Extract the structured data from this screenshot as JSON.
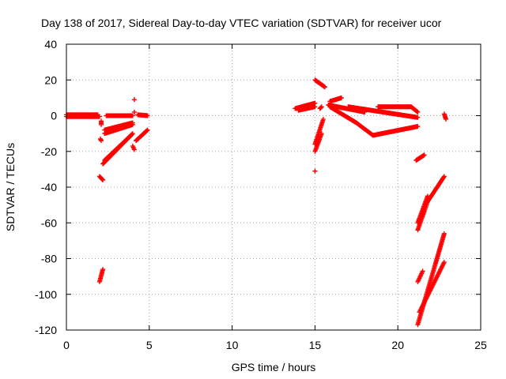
{
  "chart_data": {
    "type": "scatter",
    "title": "Day 138 of 2017, Sidereal Day-to-day VTEC variation (SDTVAR) for receiver ucor",
    "xlabel": "GPS time / hours",
    "ylabel": "SDTVAR / TECUs",
    "xlim": [
      0,
      25
    ],
    "ylim": [
      -120,
      40
    ],
    "xticks": [
      0,
      5,
      10,
      15,
      20,
      25
    ],
    "yticks": [
      -120,
      -100,
      -80,
      -60,
      -40,
      -20,
      0,
      20,
      40
    ],
    "grid": true,
    "marker": "+",
    "color": "#ff0000",
    "segments": [
      {
        "x0": 0.0,
        "y0": -0.5,
        "x1": 2.0,
        "y1": -0.5
      },
      {
        "x0": 0.0,
        "y0": 0.5,
        "x1": 1.9,
        "y1": 0.5
      },
      {
        "x0": 2.1,
        "y0": -3.0,
        "x1": 2.1,
        "y1": -5.0
      },
      {
        "x0": 2.05,
        "y0": -13.0,
        "x1": 2.1,
        "y1": -14.0
      },
      {
        "x0": 2.0,
        "y0": -34.0,
        "x1": 2.2,
        "y1": -36.0
      },
      {
        "x0": 2.0,
        "y0": -93.0,
        "x1": 2.2,
        "y1": -86.0
      },
      {
        "x0": 2.3,
        "y0": -10.0,
        "x1": 4.0,
        "y1": -5.0
      },
      {
        "x0": 2.3,
        "y0": -8.0,
        "x1": 4.0,
        "y1": -4.0
      },
      {
        "x0": 2.4,
        "y0": 0.0,
        "x1": 4.0,
        "y1": 0.0
      },
      {
        "x0": 2.2,
        "y0": -27.0,
        "x1": 4.0,
        "y1": -10.0
      },
      {
        "x0": 2.3,
        "y0": -25.0,
        "x1": 3.9,
        "y1": -11.0
      },
      {
        "x0": 4.1,
        "y0": 9.0,
        "x1": 4.1,
        "y1": 9.0
      },
      {
        "x0": 4.1,
        "y0": 2.0,
        "x1": 4.1,
        "y1": 2.0
      },
      {
        "x0": 4.0,
        "y0": -17.0,
        "x1": 4.1,
        "y1": -19.0
      },
      {
        "x0": 4.2,
        "y0": -14.0,
        "x1": 4.9,
        "y1": -8.0
      },
      {
        "x0": 4.3,
        "y0": 0.5,
        "x1": 4.9,
        "y1": 0.0
      },
      {
        "x0": 13.8,
        "y0": 4.0,
        "x1": 15.0,
        "y1": 7.0
      },
      {
        "x0": 14.0,
        "y0": 3.0,
        "x1": 15.0,
        "y1": 5.0
      },
      {
        "x0": 15.0,
        "y0": 20.0,
        "x1": 15.6,
        "y1": 16.0
      },
      {
        "x0": 15.0,
        "y0": -16.0,
        "x1": 15.5,
        "y1": -2.0
      },
      {
        "x0": 15.0,
        "y0": -20.0,
        "x1": 15.4,
        "y1": -10.0
      },
      {
        "x0": 15.0,
        "y0": -31.0,
        "x1": 15.0,
        "y1": -31.0
      },
      {
        "x0": 15.3,
        "y0": 4.0,
        "x1": 15.4,
        "y1": 5.0
      },
      {
        "x0": 15.8,
        "y0": 6.0,
        "x1": 18.0,
        "y1": 2.0
      },
      {
        "x0": 15.9,
        "y0": 8.0,
        "x1": 16.6,
        "y1": 10.0
      },
      {
        "x0": 15.9,
        "y0": 5.0,
        "x1": 17.5,
        "y1": -4.0
      },
      {
        "x0": 17.5,
        "y0": -4.0,
        "x1": 18.5,
        "y1": -11.0
      },
      {
        "x0": 18.5,
        "y0": -11.0,
        "x1": 21.2,
        "y1": -6.0
      },
      {
        "x0": 17.0,
        "y0": 5.0,
        "x1": 21.2,
        "y1": -1.0
      },
      {
        "x0": 18.8,
        "y0": 5.0,
        "x1": 20.8,
        "y1": 5.0
      },
      {
        "x0": 20.8,
        "y0": 5.0,
        "x1": 21.2,
        "y1": 2.0
      },
      {
        "x0": 21.1,
        "y0": -25.0,
        "x1": 21.6,
        "y1": -22.0
      },
      {
        "x0": 21.2,
        "y0": -64.0,
        "x1": 21.8,
        "y1": -48.0
      },
      {
        "x0": 21.8,
        "y0": -48.0,
        "x1": 22.8,
        "y1": -34.0
      },
      {
        "x0": 21.2,
        "y0": -60.0,
        "x1": 21.8,
        "y1": -45.0
      },
      {
        "x0": 21.2,
        "y0": -93.0,
        "x1": 21.5,
        "y1": -87.0
      },
      {
        "x0": 21.2,
        "y0": -117.0,
        "x1": 22.8,
        "y1": -66.0
      },
      {
        "x0": 21.3,
        "y0": -110.0,
        "x1": 22.8,
        "y1": -82.0
      },
      {
        "x0": 22.8,
        "y0": 1.0,
        "x1": 22.9,
        "y1": -2.0
      }
    ]
  }
}
